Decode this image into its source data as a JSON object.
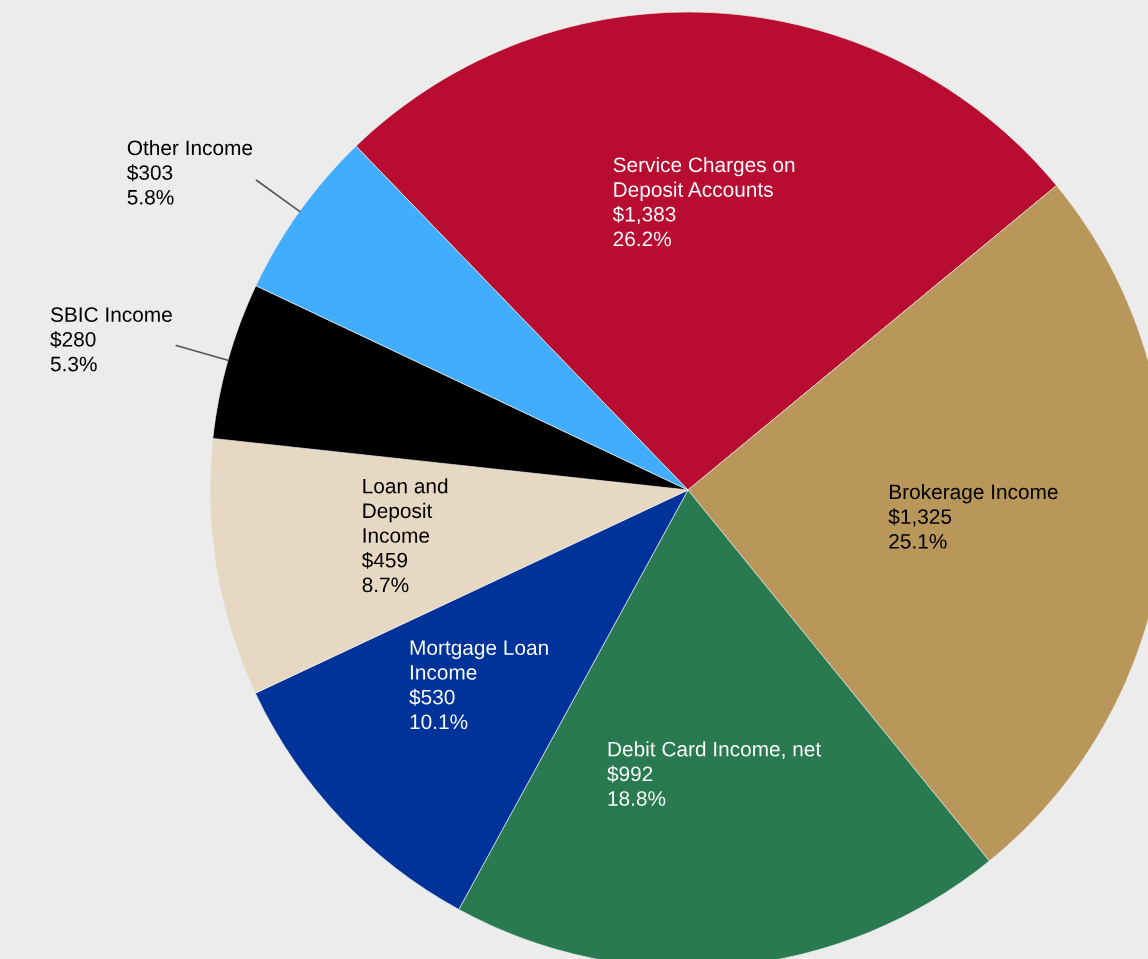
{
  "chart_data": {
    "type": "pie",
    "categories": [
      "Service Charges on\nDeposit Accounts",
      "Brokerage Income",
      "Debit Card Income, net",
      "Mortgage Loan\nIncome",
      "Loan and\nDeposit\nIncome",
      "SBIC Income",
      "Other Income"
    ],
    "values": [
      1383,
      1325,
      992,
      530,
      459,
      280,
      303
    ],
    "value_labels": [
      "$1,383\n26.2%",
      "$1,325\n25.1%",
      "$992\n18.8%",
      "$530\n10.1%",
      "$459\n8.7%",
      "$280\n5.3%",
      "$303\n5.8%"
    ],
    "colors": [
      "#b80c30",
      "#b9965a",
      "#297a51",
      "#003399",
      "#e6d8c2",
      "#000000",
      "#40adff"
    ],
    "legend": false
  }
}
